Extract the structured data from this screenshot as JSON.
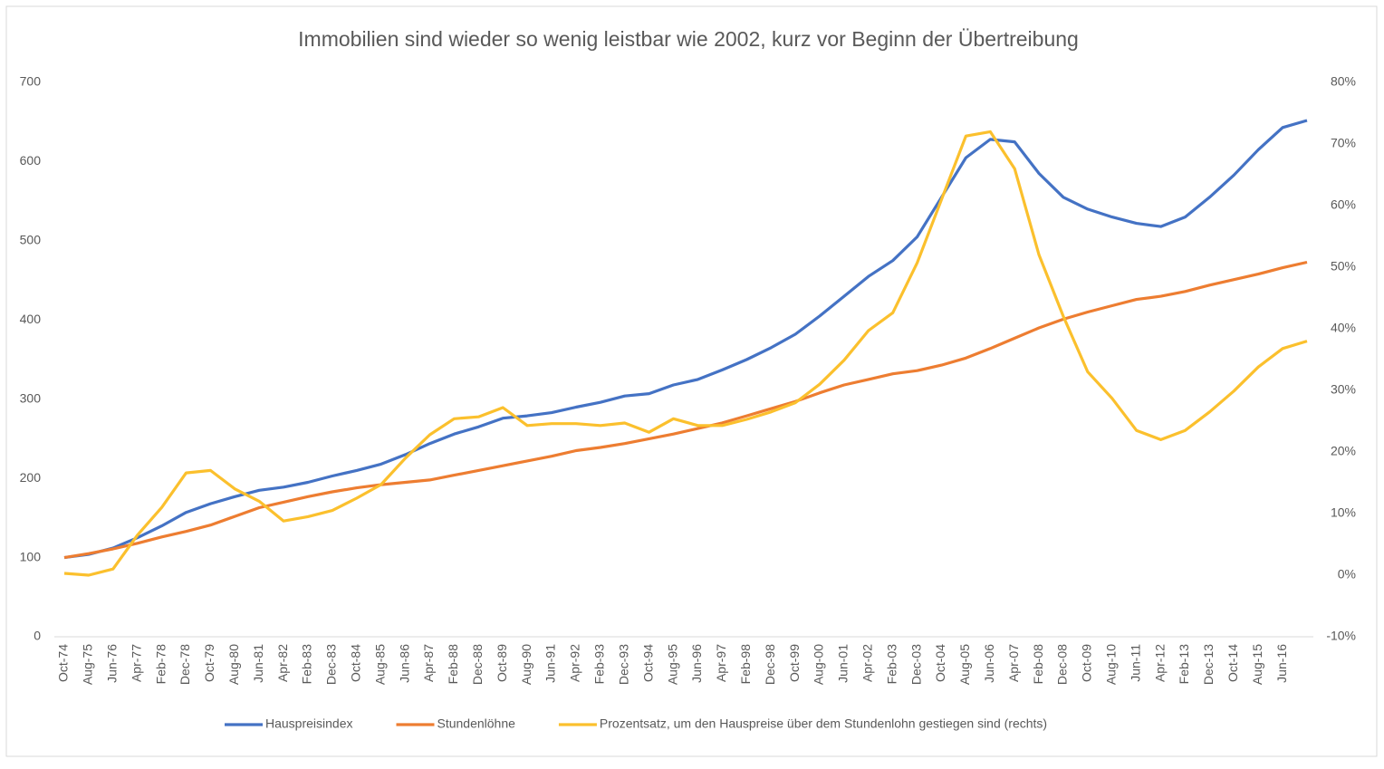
{
  "chart_data": {
    "type": "line",
    "title": "Immobilien sind wieder so wenig leistbar wie 2002, kurz vor Beginn der Übertreibung",
    "categories": [
      "Oct-74",
      "Aug-75",
      "Jun-76",
      "Apr-77",
      "Feb-78",
      "Dec-78",
      "Oct-79",
      "Aug-80",
      "Jun-81",
      "Apr-82",
      "Feb-83",
      "Dec-83",
      "Oct-84",
      "Aug-85",
      "Jun-86",
      "Apr-87",
      "Feb-88",
      "Dec-88",
      "Oct-89",
      "Aug-90",
      "Jun-91",
      "Apr-92",
      "Feb-93",
      "Dec-93",
      "Oct-94",
      "Aug-95",
      "Jun-96",
      "Apr-97",
      "Feb-98",
      "Dec-98",
      "Oct-99",
      "Aug-00",
      "Jun-01",
      "Apr-02",
      "Feb-03",
      "Dec-03",
      "Oct-04",
      "Aug-05",
      "Jun-06",
      "Apr-07",
      "Feb-08",
      "Dec-08",
      "Oct-09",
      "Aug-10",
      "Jun-11",
      "Apr-12",
      "Feb-13",
      "Dec-13",
      "Oct-14",
      "Aug-15",
      "Jun-16",
      null
    ],
    "series": [
      {
        "name": "Hauspreisindex",
        "color": "#4472c4",
        "values": [
          100,
          104,
          112,
          125,
          140,
          157,
          168,
          177,
          185,
          189,
          195,
          203,
          210,
          218,
          230,
          244,
          256,
          265,
          276,
          279,
          283,
          290,
          296,
          304,
          307,
          318,
          325,
          337,
          350,
          365,
          382,
          405,
          430,
          455,
          475,
          505,
          555,
          605,
          628,
          625,
          585,
          555,
          540,
          530,
          522,
          518,
          530,
          555,
          583,
          615,
          643,
          652
        ]
      },
      {
        "name": "Stundenlöhne",
        "color": "#ed7d31",
        "values": [
          100,
          105,
          111,
          118,
          126,
          133,
          141,
          152,
          163,
          170,
          177,
          183,
          188,
          192,
          195,
          198,
          204,
          210,
          216,
          222,
          228,
          235,
          239,
          244,
          250,
          256,
          263,
          270,
          279,
          288,
          297,
          308,
          318,
          325,
          332,
          336,
          343,
          352,
          364,
          377,
          390,
          401,
          410,
          418,
          426,
          430,
          436,
          444,
          451,
          458,
          466,
          473
        ]
      },
      {
        "name": "Prozentsatz, um den Hauspreise über dem Stundenlohn gestiegen sind (rechts)",
        "color": "#fbc02d",
        "axis": "y2",
        "values": [
          0.3,
          0,
          1,
          6.5,
          11,
          16.6,
          17,
          14,
          12,
          8.8,
          9.5,
          10.5,
          12.5,
          14.7,
          19,
          22.8,
          25.4,
          25.7,
          27.2,
          24.3,
          24.6,
          24.6,
          24.3,
          24.7,
          23.2,
          25.4,
          24.3,
          24.3,
          25.3,
          26.5,
          28,
          31,
          34.9,
          39.7,
          42.6,
          50.7,
          61,
          71.3,
          72,
          66,
          52,
          42,
          33,
          28.7,
          23.5,
          22,
          23.5,
          26.5,
          29.9,
          33.8,
          36.8,
          38
        ]
      }
    ],
    "ylim": [
      0,
      700
    ],
    "yticks": [
      0,
      100,
      200,
      300,
      400,
      500,
      600,
      700
    ],
    "y2lim": [
      -10,
      80
    ],
    "y2ticks": [
      {
        "value": -10,
        "label": "-10%"
      },
      {
        "value": 0,
        "label": "0%"
      },
      {
        "value": 10,
        "label": "10%"
      },
      {
        "value": 20,
        "label": "20%"
      },
      {
        "value": 30,
        "label": "30%"
      },
      {
        "value": 40,
        "label": "40%"
      },
      {
        "value": 50,
        "label": "50%"
      },
      {
        "value": 60,
        "label": "60%"
      },
      {
        "value": 70,
        "label": "70%"
      },
      {
        "value": 80,
        "label": "80%"
      }
    ],
    "grid": false,
    "legend": "bottom"
  }
}
